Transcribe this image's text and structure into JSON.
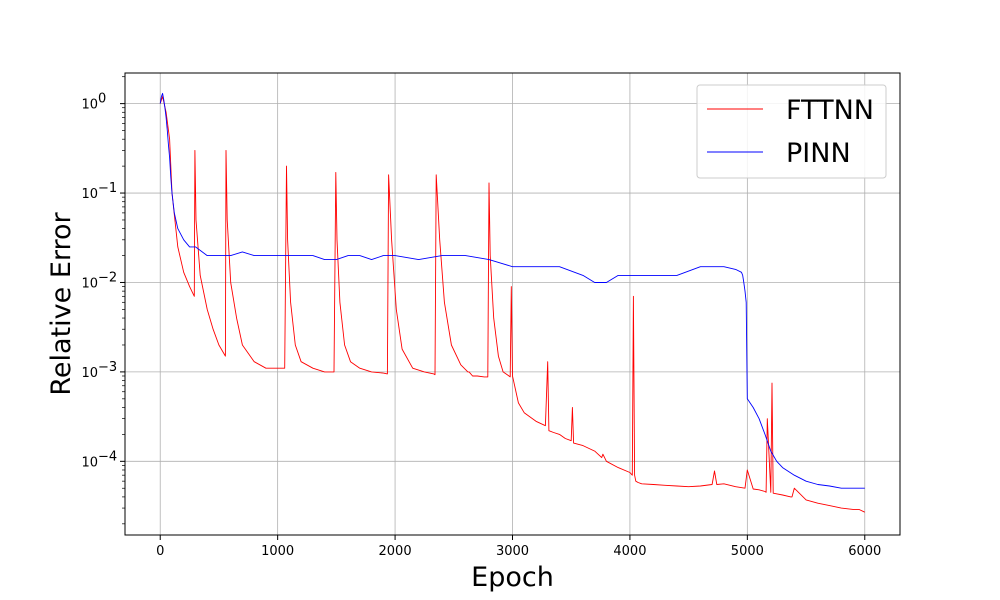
{
  "chart_data": {
    "type": "line",
    "title": "",
    "xlabel": "Epoch",
    "ylabel": "Relative Error",
    "xlim": [
      -300,
      6300
    ],
    "ylim": [
      1.5e-05,
      2.2
    ],
    "yscale": "log",
    "grid": true,
    "legend_position": "top-right",
    "x_ticks": [
      0,
      1000,
      2000,
      3000,
      4000,
      5000,
      6000
    ],
    "x_tick_labels": [
      "0",
      "1000",
      "2000",
      "3000",
      "4000",
      "5000",
      "6000"
    ],
    "y_ticks": [
      {
        "value": 1,
        "base": "10",
        "exp": "0"
      },
      {
        "value": 0.1,
        "base": "10",
        "exp": "−1"
      },
      {
        "value": 0.01,
        "base": "10",
        "exp": "−2"
      },
      {
        "value": 0.001,
        "base": "10",
        "exp": "−3"
      },
      {
        "value": 0.0001,
        "base": "10",
        "exp": "−4"
      }
    ],
    "series": [
      {
        "name": "FTTNN",
        "color": "#ff0000",
        "x": [
          0,
          20,
          50,
          80,
          100,
          150,
          200,
          250,
          290,
          295,
          305,
          340,
          400,
          450,
          500,
          555,
          560,
          570,
          600,
          650,
          700,
          800,
          900,
          1000,
          1060,
          1075,
          1085,
          1110,
          1150,
          1200,
          1300,
          1400,
          1480,
          1495,
          1505,
          1530,
          1570,
          1620,
          1700,
          1800,
          1900,
          1935,
          1945,
          1970,
          2010,
          2060,
          2150,
          2250,
          2330,
          2340,
          2350,
          2380,
          2420,
          2480,
          2560,
          2620,
          2630,
          2660,
          2700,
          2760,
          2790,
          2800,
          2810,
          2840,
          2880,
          2920,
          2960,
          2980,
          2990,
          3000,
          3050,
          3100,
          3200,
          3280,
          3300,
          3310,
          3350,
          3400,
          3450,
          3500,
          3510,
          3520,
          3600,
          3700,
          3760,
          3770,
          3800,
          3900,
          4000,
          4020,
          4030,
          4040,
          4050,
          4070,
          4100,
          4200,
          4300,
          4400,
          4500,
          4600,
          4700,
          4720,
          4740,
          4800,
          4900,
          4980,
          5000,
          5050,
          5100,
          5150,
          5160,
          5170,
          5200,
          5210,
          5220,
          5300,
          5370,
          5380,
          5400,
          5500,
          5600,
          5700,
          5800,
          5900,
          5950,
          6000
        ],
        "y": [
          1.0,
          1.2,
          0.8,
          0.4,
          0.1,
          0.025,
          0.013,
          0.009,
          0.007,
          0.3,
          0.05,
          0.012,
          0.005,
          0.003,
          0.002,
          0.0015,
          0.3,
          0.05,
          0.01,
          0.004,
          0.002,
          0.0013,
          0.0011,
          0.0011,
          0.0011,
          0.2,
          0.03,
          0.006,
          0.002,
          0.0013,
          0.0011,
          0.001,
          0.001,
          0.17,
          0.03,
          0.006,
          0.002,
          0.0013,
          0.0011,
          0.001,
          0.00097,
          0.00095,
          0.16,
          0.03,
          0.005,
          0.0018,
          0.0011,
          0.001,
          0.00095,
          0.00093,
          0.16,
          0.03,
          0.006,
          0.002,
          0.0012,
          0.001,
          0.001,
          0.0009,
          0.0009,
          0.00088,
          0.00088,
          0.13,
          0.02,
          0.004,
          0.0015,
          0.001,
          0.00092,
          0.00088,
          0.009,
          0.0009,
          0.00045,
          0.00035,
          0.00028,
          0.00025,
          0.0013,
          0.00022,
          0.00021,
          0.0002,
          0.00018,
          0.00017,
          0.0004,
          0.00016,
          0.00015,
          0.00013,
          0.00011,
          0.00012,
          0.0001,
          8.5e-05,
          7.5e-05,
          7e-05,
          0.007,
          7e-05,
          6e-05,
          5.8e-05,
          5.6e-05,
          5.5e-05,
          5.4e-05,
          5.3e-05,
          5.2e-05,
          5.3e-05,
          5.5e-05,
          7.8e-05,
          5.5e-05,
          5.6e-05,
          5.2e-05,
          5e-05,
          8e-05,
          4.9e-05,
          4.8e-05,
          4.6e-05,
          4.5e-05,
          0.0003,
          4.5e-05,
          0.00075,
          4.4e-05,
          4.2e-05,
          4e-05,
          4e-05,
          5e-05,
          3.7e-05,
          3.4e-05,
          3.2e-05,
          3e-05,
          2.9e-05,
          2.9e-05,
          2.7e-05
        ]
      },
      {
        "name": "PINN",
        "color": "#0000ff",
        "x": [
          0,
          10,
          20,
          30,
          40,
          50,
          60,
          70,
          80,
          90,
          100,
          120,
          150,
          200,
          250,
          300,
          400,
          500,
          600,
          700,
          800,
          900,
          1000,
          1100,
          1200,
          1300,
          1400,
          1500,
          1600,
          1700,
          1800,
          1900,
          2000,
          2200,
          2400,
          2600,
          2800,
          3000,
          3200,
          3400,
          3600,
          3700,
          3800,
          3900,
          4000,
          4200,
          4400,
          4600,
          4800,
          4900,
          4950,
          4960,
          4970,
          4980,
          4990,
          5000,
          5050,
          5100,
          5150,
          5200,
          5250,
          5300,
          5400,
          5500,
          5600,
          5700,
          5800,
          5900,
          6000
        ],
        "y": [
          1.0,
          1.2,
          1.3,
          1.1,
          0.9,
          0.7,
          0.5,
          0.35,
          0.25,
          0.15,
          0.1,
          0.06,
          0.04,
          0.03,
          0.025,
          0.025,
          0.02,
          0.02,
          0.02,
          0.022,
          0.02,
          0.02,
          0.02,
          0.02,
          0.02,
          0.02,
          0.018,
          0.018,
          0.02,
          0.02,
          0.018,
          0.02,
          0.02,
          0.018,
          0.02,
          0.02,
          0.018,
          0.015,
          0.015,
          0.015,
          0.012,
          0.01,
          0.01,
          0.012,
          0.012,
          0.012,
          0.012,
          0.015,
          0.015,
          0.014,
          0.013,
          0.012,
          0.01,
          0.008,
          0.006,
          0.0005,
          0.0004,
          0.0003,
          0.0002,
          0.00013,
          0.0001,
          8.5e-05,
          7e-05,
          6e-05,
          5.5e-05,
          5.3e-05,
          5e-05,
          5e-05,
          5e-05
        ]
      }
    ]
  }
}
